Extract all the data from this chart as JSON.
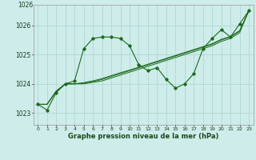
{
  "xlabel": "Graphe pression niveau de la mer (hPa)",
  "bg_color": "#ceecea",
  "grid_color": "#aed8d4",
  "line_color": "#1a6b1a",
  "marker_color": "#1a6b1a",
  "ylim": [
    1022.6,
    1026.7
  ],
  "xlim": [
    -0.5,
    23.5
  ],
  "yticks": [
    1023,
    1024,
    1025,
    1026
  ],
  "ytop_label": "1026",
  "xticks": [
    0,
    1,
    2,
    3,
    4,
    5,
    6,
    7,
    8,
    9,
    10,
    11,
    12,
    13,
    14,
    15,
    16,
    17,
    18,
    19,
    20,
    21,
    22,
    23
  ],
  "series_main": [
    1023.3,
    1023.1,
    1023.7,
    1024.0,
    1024.1,
    1025.2,
    1025.55,
    1025.6,
    1025.6,
    1025.55,
    1025.3,
    1024.65,
    1024.45,
    1024.55,
    1024.15,
    1023.85,
    1024.0,
    1024.35,
    1025.2,
    1025.55,
    1025.85,
    1025.6,
    1026.05,
    1026.5
  ],
  "series_reg1": [
    1023.3,
    1023.3,
    1023.75,
    1024.0,
    1024.0,
    1024.0,
    1024.05,
    1024.1,
    1024.2,
    1024.3,
    1024.4,
    1024.5,
    1024.6,
    1024.7,
    1024.8,
    1024.9,
    1025.0,
    1025.1,
    1025.2,
    1025.3,
    1025.45,
    1025.55,
    1025.75,
    1026.5
  ],
  "series_reg2": [
    1023.3,
    1023.3,
    1023.75,
    1024.0,
    1024.0,
    1024.02,
    1024.08,
    1024.15,
    1024.25,
    1024.35,
    1024.45,
    1024.55,
    1024.65,
    1024.75,
    1024.85,
    1024.95,
    1025.05,
    1025.15,
    1025.25,
    1025.35,
    1025.5,
    1025.6,
    1025.8,
    1026.5
  ],
  "series_reg3": [
    1023.3,
    1023.3,
    1023.75,
    1024.0,
    1024.0,
    1024.04,
    1024.1,
    1024.18,
    1024.28,
    1024.38,
    1024.47,
    1024.57,
    1024.67,
    1024.77,
    1024.87,
    1024.97,
    1025.07,
    1025.17,
    1025.27,
    1025.37,
    1025.52,
    1025.62,
    1025.82,
    1026.5
  ]
}
